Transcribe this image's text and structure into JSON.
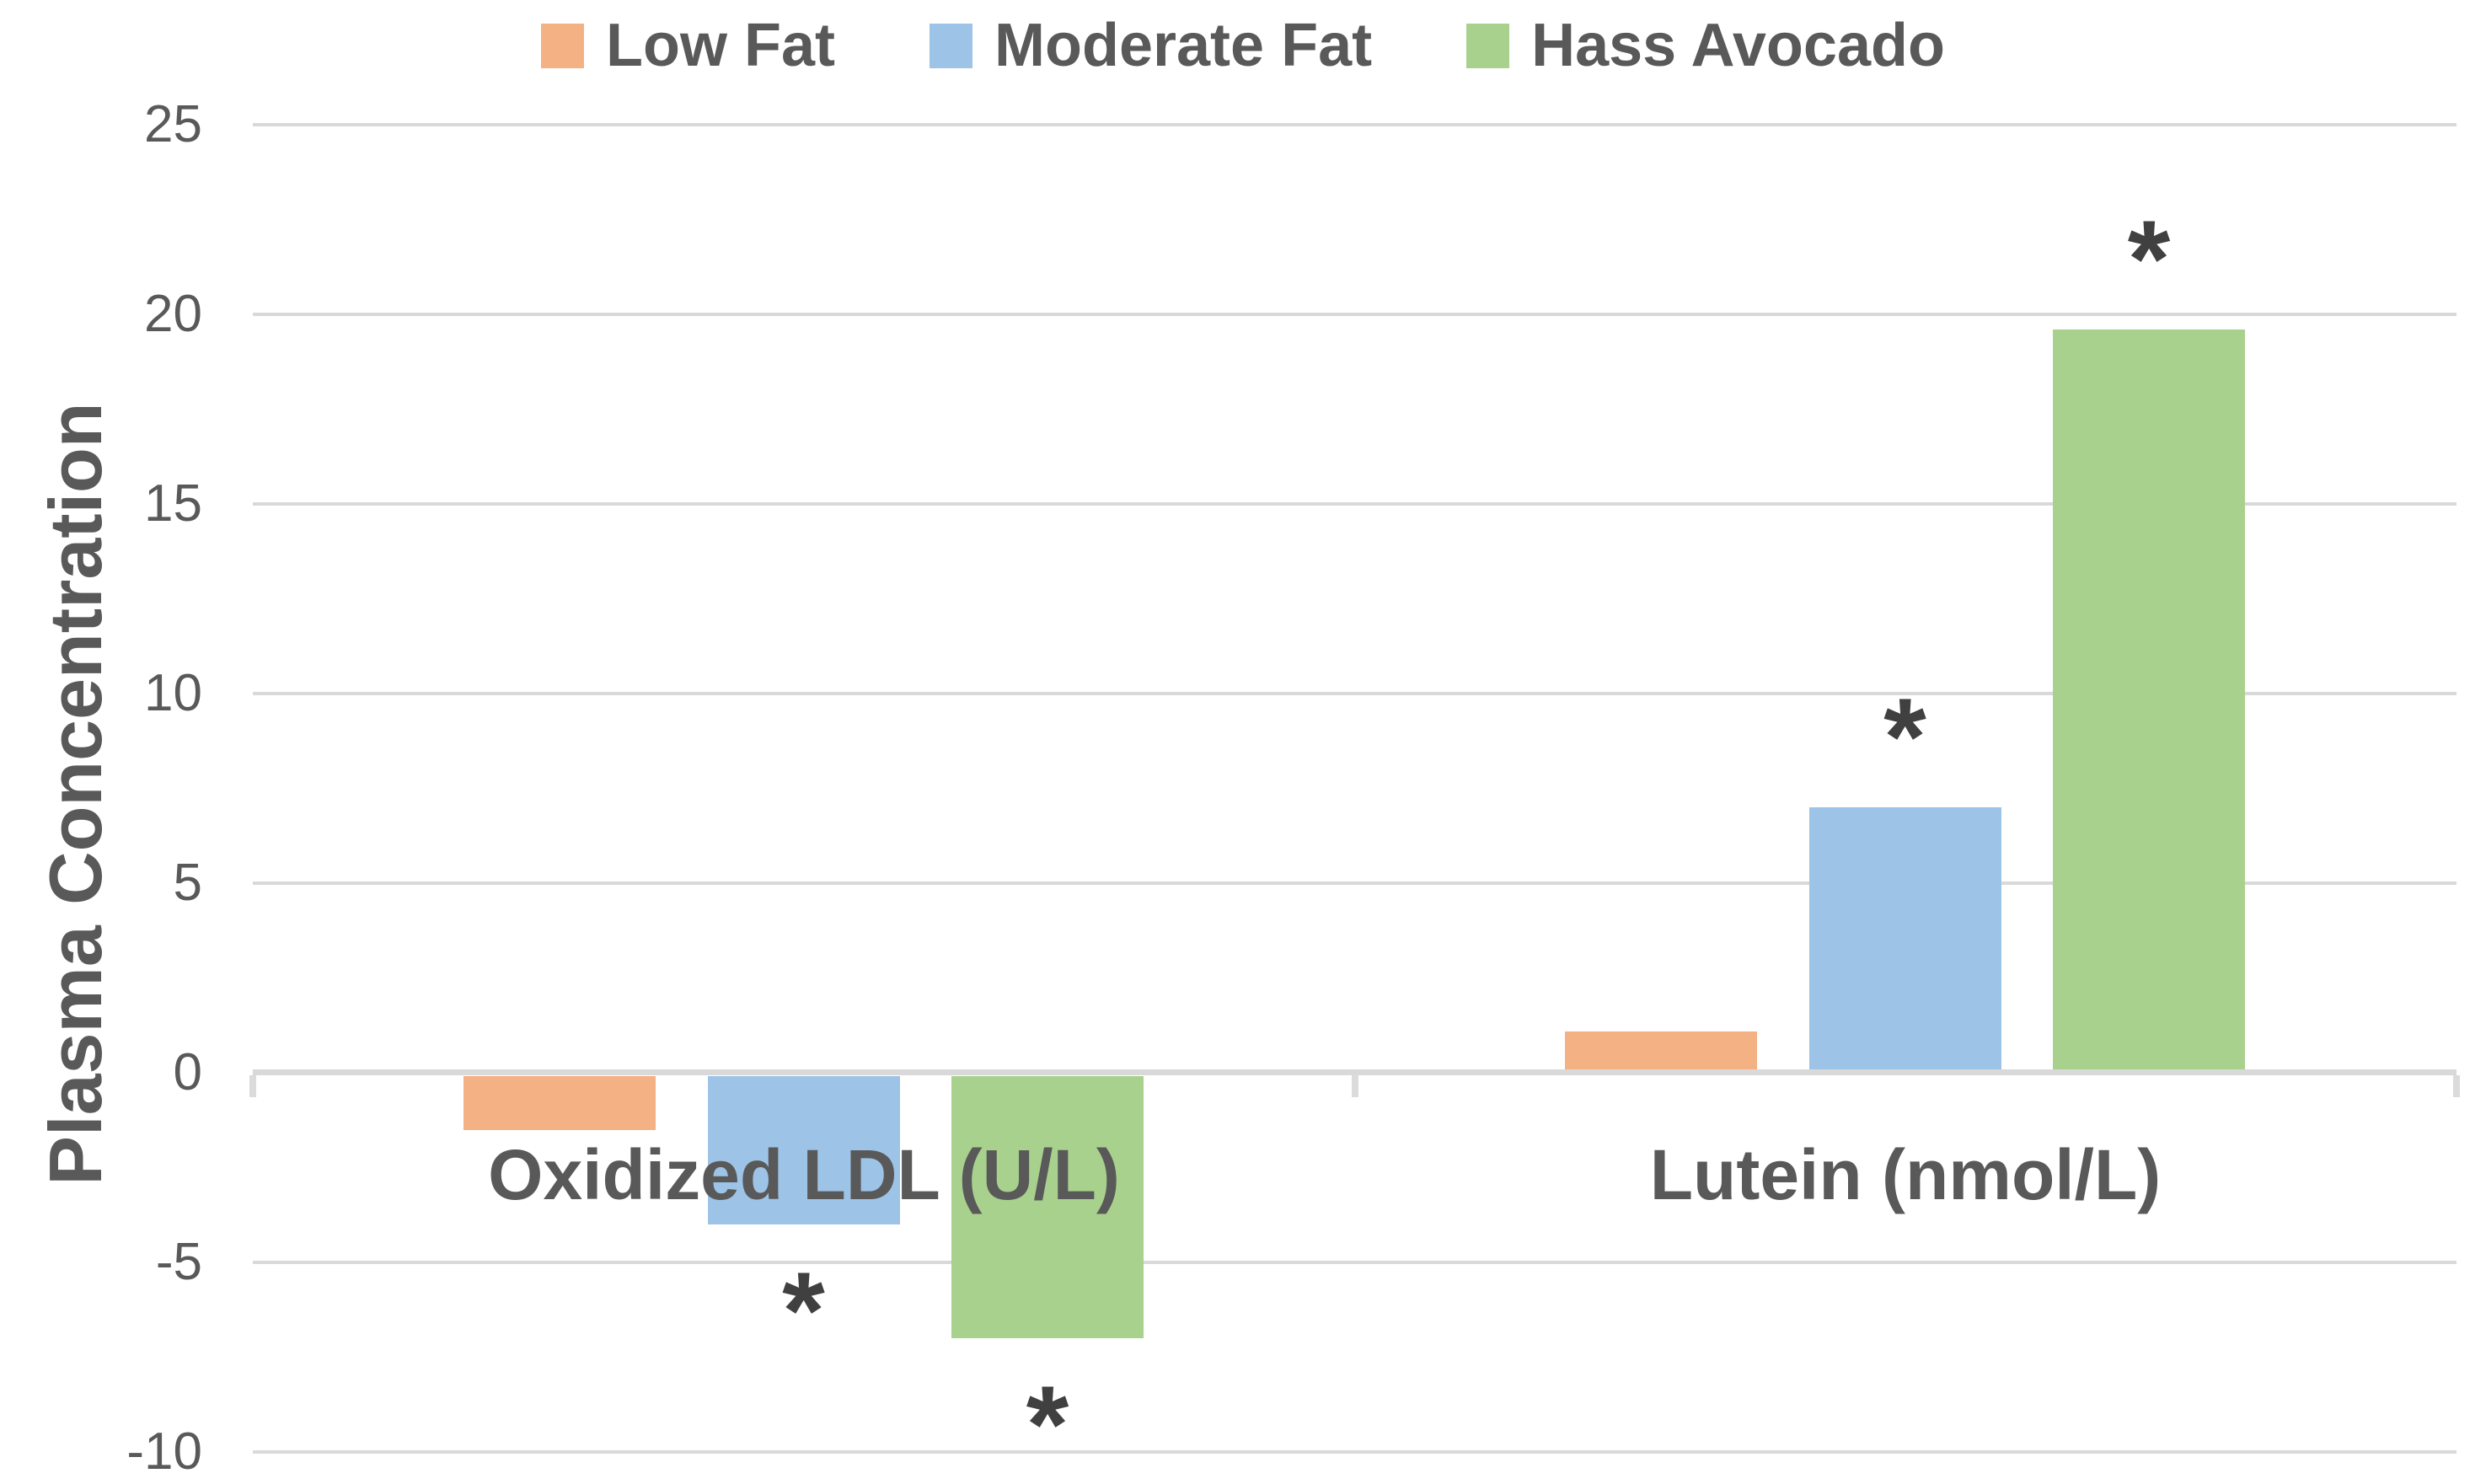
{
  "colors": {
    "background": "#FFFFFF",
    "text": "#595959",
    "gridline": "#D9D9D9",
    "annotation": "#404040",
    "low_fat": "#F4B183",
    "moderate_fat": "#9DC3E6",
    "hass_avocado": "#A9D18E"
  },
  "legend": {
    "position": "top",
    "entries": [
      {
        "label": "Low Fat",
        "color": "#F4B183"
      },
      {
        "label": "Moderate Fat",
        "color": "#9DC3E6"
      },
      {
        "label": "Hass Avocado",
        "color": "#A9D18E"
      }
    ]
  },
  "y_axis": {
    "title": "Plasma Concentration",
    "ticks": [
      25,
      20,
      15,
      10,
      5,
      0,
      -5,
      -10
    ],
    "min": -10,
    "max": 25
  },
  "chart_data": {
    "type": "bar",
    "title": "",
    "xlabel": "",
    "ylabel": "Plasma Concentration",
    "ylim": [
      -10,
      25
    ],
    "grid": true,
    "legend_position": "top",
    "categories": [
      "Oxidized LDL (U/L)",
      "Lutein (nmol/L)"
    ],
    "series": [
      {
        "name": "Low Fat",
        "color": "#F4B183",
        "values": [
          -1.5,
          1.1
        ]
      },
      {
        "name": "Moderate Fat",
        "color": "#9DC3E6",
        "values": [
          -4,
          7
        ]
      },
      {
        "name": "Hass Avocado",
        "color": "#A9D18E",
        "values": [
          -7,
          19.6
        ]
      }
    ],
    "annotations": [
      {
        "symbol": "*",
        "series_index": 1,
        "category_index": 0,
        "placement": "below"
      },
      {
        "symbol": "*",
        "series_index": 2,
        "category_index": 0,
        "placement": "below"
      },
      {
        "symbol": "*",
        "series_index": 1,
        "category_index": 1,
        "placement": "above"
      },
      {
        "symbol": "*",
        "series_index": 2,
        "category_index": 1,
        "placement": "above"
      }
    ]
  }
}
